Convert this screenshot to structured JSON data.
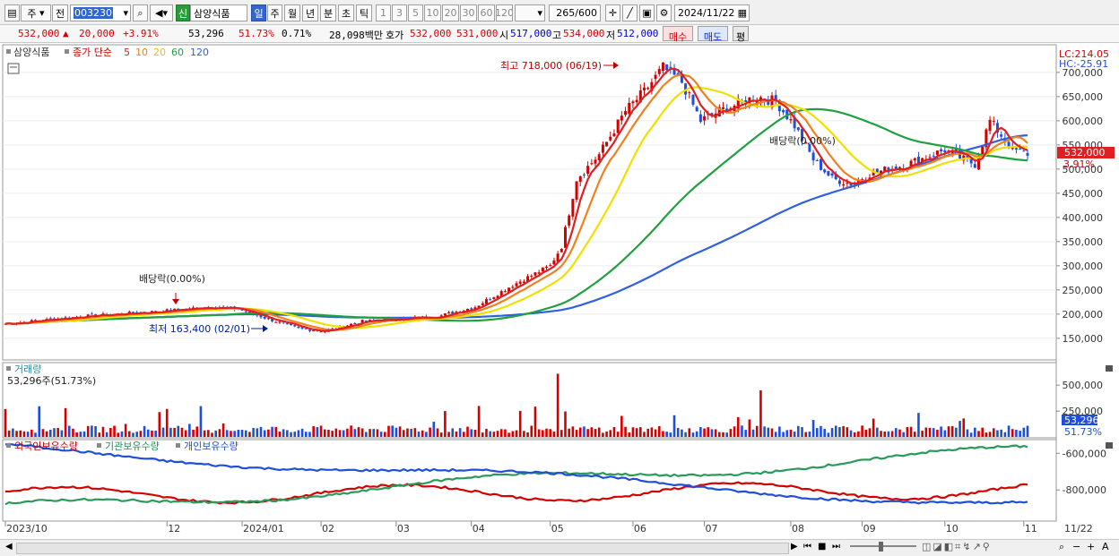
{
  "toolbar": {
    "market": "주",
    "type": "전",
    "code": "003230",
    "name_badge": "신",
    "name": "삼양식품",
    "periods": [
      "일",
      "주",
      "월",
      "년",
      "분",
      "초",
      "틱"
    ],
    "active_period": "일",
    "minute_steps": [
      "1",
      "3",
      "5",
      "10",
      "20",
      "30",
      "60",
      "120"
    ],
    "count": "265",
    "count_total": "/600",
    "date": "2024/11/22"
  },
  "info": {
    "price": "532,000",
    "change": "20,000",
    "pct": "+3.91%",
    "volume": "53,296",
    "vol_pct": "51.73%",
    "turnover_pct": "0.71%",
    "amount": "28,098백만",
    "bid_label": "호가",
    "bid1": "532,000",
    "bid2": "531,000",
    "open_label": "시",
    "open": "517,000",
    "high_label": "고",
    "high": "534,000",
    "low_label": "저",
    "low": "512,000",
    "buy": "매수",
    "sell": "매도",
    "extra": "평"
  },
  "colors": {
    "up": "#d40000",
    "down": "#1f4fd8",
    "ma5": "#e02020",
    "ma10": "#f08020",
    "ma20": "#f0e000",
    "ma60": "#20a040",
    "ma120": "#3060e0"
  },
  "price_panel": {
    "legend_name": "삼양식품",
    "legend_desc": "종가 단순",
    "ma_labels": [
      "5",
      "10",
      "20",
      "60",
      "120"
    ],
    "lc": "LC:214.05",
    "hc": "HC:-25.91",
    "current_price": "532,000",
    "current_pct": "3.91%",
    "high_annotation": "최고 718,000 (06/19)",
    "low_annotation": "최저 163,400 (02/01)",
    "dividend_1": "배당락(0.00%)",
    "dividend_2": "배당락(0.00%)"
  },
  "volume_panel": {
    "title": "거래량",
    "value": "53,296주(51.73%)",
    "current": "53,296",
    "current_pct": "51.73%"
  },
  "holdings_panel": {
    "labels": [
      "외국인보유수량",
      "기관보유수량",
      "개인보유수량"
    ]
  },
  "x_axis": [
    "2023/10",
    "12",
    "2024/01",
    "02",
    "03",
    "04",
    "05",
    "06",
    "07",
    "08",
    "09",
    "10",
    "11",
    "11/22"
  ],
  "chart_data": {
    "type": "line",
    "price_y_ticks": [
      "700,000",
      "650,000",
      "600,000",
      "550,000",
      "500,000",
      "450,000",
      "400,000",
      "350,000",
      "300,000",
      "250,000",
      "200,000",
      "150,000"
    ],
    "volume_y_ticks": [
      "500,000",
      "250,000"
    ],
    "holdings_y_ticks": [
      "-600,000",
      "-800,000"
    ],
    "price_range": [
      120000,
      735000
    ],
    "volume_range": [
      0,
      640000
    ],
    "holdings_range": [
      -960000,
      -540000
    ],
    "x_months": [
      "2023/10",
      "12",
      "2024/01",
      "02",
      "03",
      "04",
      "05",
      "06",
      "07",
      "08",
      "09",
      "10",
      "11"
    ],
    "close_keyframes": [
      [
        0,
        180000
      ],
      [
        20,
        195000
      ],
      [
        40,
        205000
      ],
      [
        55,
        215000
      ],
      [
        62,
        210000
      ],
      [
        70,
        190000
      ],
      [
        78,
        170000
      ],
      [
        85,
        165000
      ],
      [
        95,
        185000
      ],
      [
        105,
        190000
      ],
      [
        115,
        195000
      ],
      [
        125,
        215000
      ],
      [
        135,
        260000
      ],
      [
        140,
        280000
      ],
      [
        145,
        300000
      ],
      [
        148,
        340000
      ],
      [
        152,
        480000
      ],
      [
        158,
        530000
      ],
      [
        165,
        620000
      ],
      [
        170,
        660000
      ],
      [
        175,
        710000
      ],
      [
        180,
        680000
      ],
      [
        185,
        600000
      ],
      [
        190,
        620000
      ],
      [
        200,
        650000
      ],
      [
        205,
        640000
      ],
      [
        210,
        590000
      ],
      [
        215,
        520000
      ],
      [
        220,
        480000
      ],
      [
        225,
        470000
      ],
      [
        230,
        490000
      ],
      [
        240,
        510000
      ],
      [
        250,
        540000
      ],
      [
        255,
        520000
      ],
      [
        258,
        510000
      ],
      [
        262,
        600000
      ],
      [
        265,
        570000
      ],
      [
        268,
        540000
      ],
      [
        272,
        532000
      ]
    ],
    "volume_spike_indexes": [
      147,
      201
    ],
    "volume_spike_values": [
      610000,
      450000
    ]
  }
}
